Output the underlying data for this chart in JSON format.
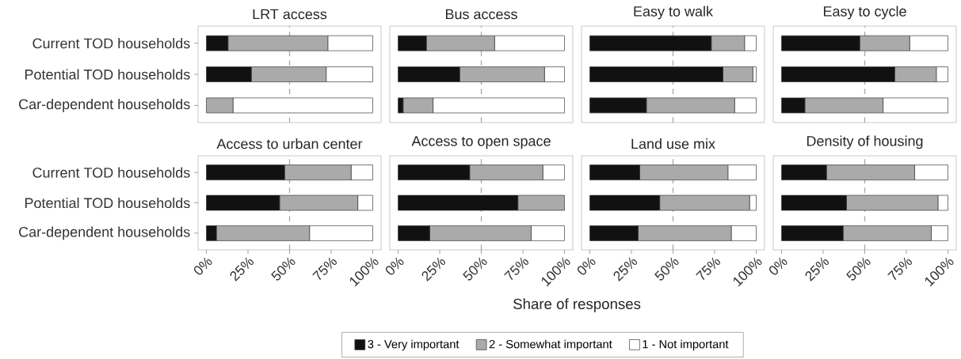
{
  "chart_data": [
    {
      "type": "bar",
      "orientation": "horizontal",
      "stacked": true,
      "title": "LRT access",
      "categories": [
        "Current TOD households",
        "Potential TOD households",
        "Car-dependent households"
      ],
      "tick_labels": "y",
      "xlim": [
        -5,
        105
      ],
      "ref_lines": [
        {
          "axis": "x",
          "value": 50,
          "line_style": "dashed",
          "color": "#aaaaaa"
        }
      ],
      "series": [
        {
          "color": "#111111",
          "values": [
            13,
            27,
            0
          ]
        },
        {
          "color": "#aaaaaa",
          "values": [
            60,
            45,
            16
          ]
        },
        {
          "color": "#ffffff",
          "values": [
            27,
            28,
            84
          ]
        }
      ]
    },
    {
      "type": "bar",
      "orientation": "horizontal",
      "stacked": true,
      "title": "Bus access",
      "categories": [
        null,
        null,
        null
      ],
      "tick_labels": false,
      "xlim": [
        -5,
        105
      ],
      "ref_lines": [
        {
          "axis": "x",
          "value": 50,
          "line_style": "dashed",
          "color": "#aaaaaa"
        }
      ],
      "series": [
        {
          "color": "#111111",
          "values": [
            17,
            37,
            3
          ]
        },
        {
          "color": "#aaaaaa",
          "values": [
            41,
            51,
            18
          ]
        },
        {
          "color": "#ffffff",
          "values": [
            42,
            12,
            79
          ]
        }
      ]
    },
    {
      "type": "bar",
      "orientation": "horizontal",
      "stacked": true,
      "title": "Easy to walk",
      "categories": [
        null,
        null,
        null
      ],
      "tick_labels": false,
      "xlim": [
        -5,
        105
      ],
      "ref_lines": [
        {
          "axis": "x",
          "value": 50,
          "line_style": "dashed",
          "color": "#aaaaaa"
        }
      ],
      "series": [
        {
          "color": "#111111",
          "values": [
            73,
            80,
            34
          ]
        },
        {
          "color": "#aaaaaa",
          "values": [
            20,
            18,
            53
          ]
        },
        {
          "color": "#ffffff",
          "values": [
            7,
            2,
            13
          ]
        }
      ]
    },
    {
      "type": "bar",
      "orientation": "horizontal",
      "stacked": true,
      "title": "Easy to cycle",
      "categories": [
        null,
        null,
        null
      ],
      "tick_labels": false,
      "xlim": [
        -5,
        105
      ],
      "ref_lines": [
        {
          "axis": "x",
          "value": 50,
          "line_style": "dashed",
          "color": "#aaaaaa"
        }
      ],
      "series": [
        {
          "color": "#111111",
          "values": [
            47,
            68,
            14
          ]
        },
        {
          "color": "#aaaaaa",
          "values": [
            30,
            25,
            47
          ]
        },
        {
          "color": "#ffffff",
          "values": [
            23,
            7,
            39
          ]
        }
      ]
    },
    {
      "type": "bar",
      "orientation": "horizontal",
      "stacked": true,
      "title": "Access to urban center",
      "categories": [
        "Current TOD households",
        "Potential TOD households",
        "Car-dependent households"
      ],
      "xlim": [
        -5,
        105
      ],
      "xticks": [
        {
          "value": 0,
          "label": "0%"
        },
        {
          "value": 25,
          "label": "25%"
        },
        {
          "value": 50,
          "label": "50%"
        },
        {
          "value": 75,
          "label": "75%"
        },
        {
          "value": 100,
          "label": "100%"
        }
      ],
      "ref_lines": [
        {
          "axis": "x",
          "value": 50,
          "line_style": "dashed",
          "color": "#aaaaaa"
        }
      ],
      "series": [
        {
          "color": "#111111",
          "values": [
            47,
            44,
            6
          ]
        },
        {
          "color": "#aaaaaa",
          "values": [
            40,
            47,
            56
          ]
        },
        {
          "color": "#ffffff",
          "values": [
            13,
            9,
            38
          ]
        }
      ]
    },
    {
      "type": "bar",
      "orientation": "horizontal",
      "stacked": true,
      "title": "Access to open space",
      "xlabel": "Share of responses",
      "legend": "bottom",
      "categories": [
        null,
        null,
        null
      ],
      "tick_labels": "x",
      "xlim": [
        -5,
        105
      ],
      "xticks": [
        {
          "value": 0,
          "label": "0%"
        },
        {
          "value": 25,
          "label": "25%"
        },
        {
          "value": 50,
          "label": "50%"
        },
        {
          "value": 75,
          "label": "75%"
        },
        {
          "value": 100,
          "label": "100%"
        }
      ],
      "ref_lines": [
        {
          "axis": "x",
          "value": 50,
          "line_style": "dashed",
          "color": "#aaaaaa"
        }
      ],
      "series": [
        {
          "name": "3 - Very important",
          "color": "#111111",
          "values": [
            43,
            72,
            19
          ]
        },
        {
          "name": "2 - Somewhat important",
          "color": "#aaaaaa",
          "values": [
            44,
            28,
            61
          ]
        },
        {
          "name": "1 - Not important",
          "color": "#ffffff",
          "values": [
            13,
            0,
            20
          ]
        }
      ]
    },
    {
      "type": "bar",
      "orientation": "horizontal",
      "stacked": true,
      "title": "Land use mix",
      "categories": [
        null,
        null,
        null
      ],
      "tick_labels": "x",
      "xlim": [
        -5,
        105
      ],
      "xticks": [
        {
          "value": 0,
          "label": "0%"
        },
        {
          "value": 25,
          "label": "25%"
        },
        {
          "value": 50,
          "label": "50%"
        },
        {
          "value": 75,
          "label": "75%"
        },
        {
          "value": 100,
          "label": "100%"
        }
      ],
      "ref_lines": [
        {
          "axis": "x",
          "value": 50,
          "line_style": "dashed",
          "color": "#aaaaaa"
        }
      ],
      "series": [
        {
          "color": "#111111",
          "values": [
            30,
            42,
            29
          ]
        },
        {
          "color": "#aaaaaa",
          "values": [
            53,
            54,
            56
          ]
        },
        {
          "color": "#ffffff",
          "values": [
            17,
            4,
            15
          ]
        }
      ]
    },
    {
      "type": "bar",
      "orientation": "horizontal",
      "stacked": true,
      "title": "Density of housing",
      "categories": [
        null,
        null,
        null
      ],
      "tick_labels": "x",
      "xlim": [
        -5,
        105
      ],
      "xticks": [
        {
          "value": 0,
          "label": "0%"
        },
        {
          "value": 25,
          "label": "25%"
        },
        {
          "value": 50,
          "label": "50%"
        },
        {
          "value": 75,
          "label": "75%"
        },
        {
          "value": 100,
          "label": "100%"
        }
      ],
      "ref_lines": [
        {
          "axis": "x",
          "value": 50,
          "line_style": "dashed",
          "color": "#aaaaaa"
        }
      ],
      "series": [
        {
          "color": "#111111",
          "values": [
            27,
            39,
            37
          ]
        },
        {
          "color": "#aaaaaa",
          "values": [
            53,
            55,
            53
          ]
        },
        {
          "color": "#ffffff",
          "values": [
            20,
            6,
            10
          ]
        }
      ]
    }
  ]
}
